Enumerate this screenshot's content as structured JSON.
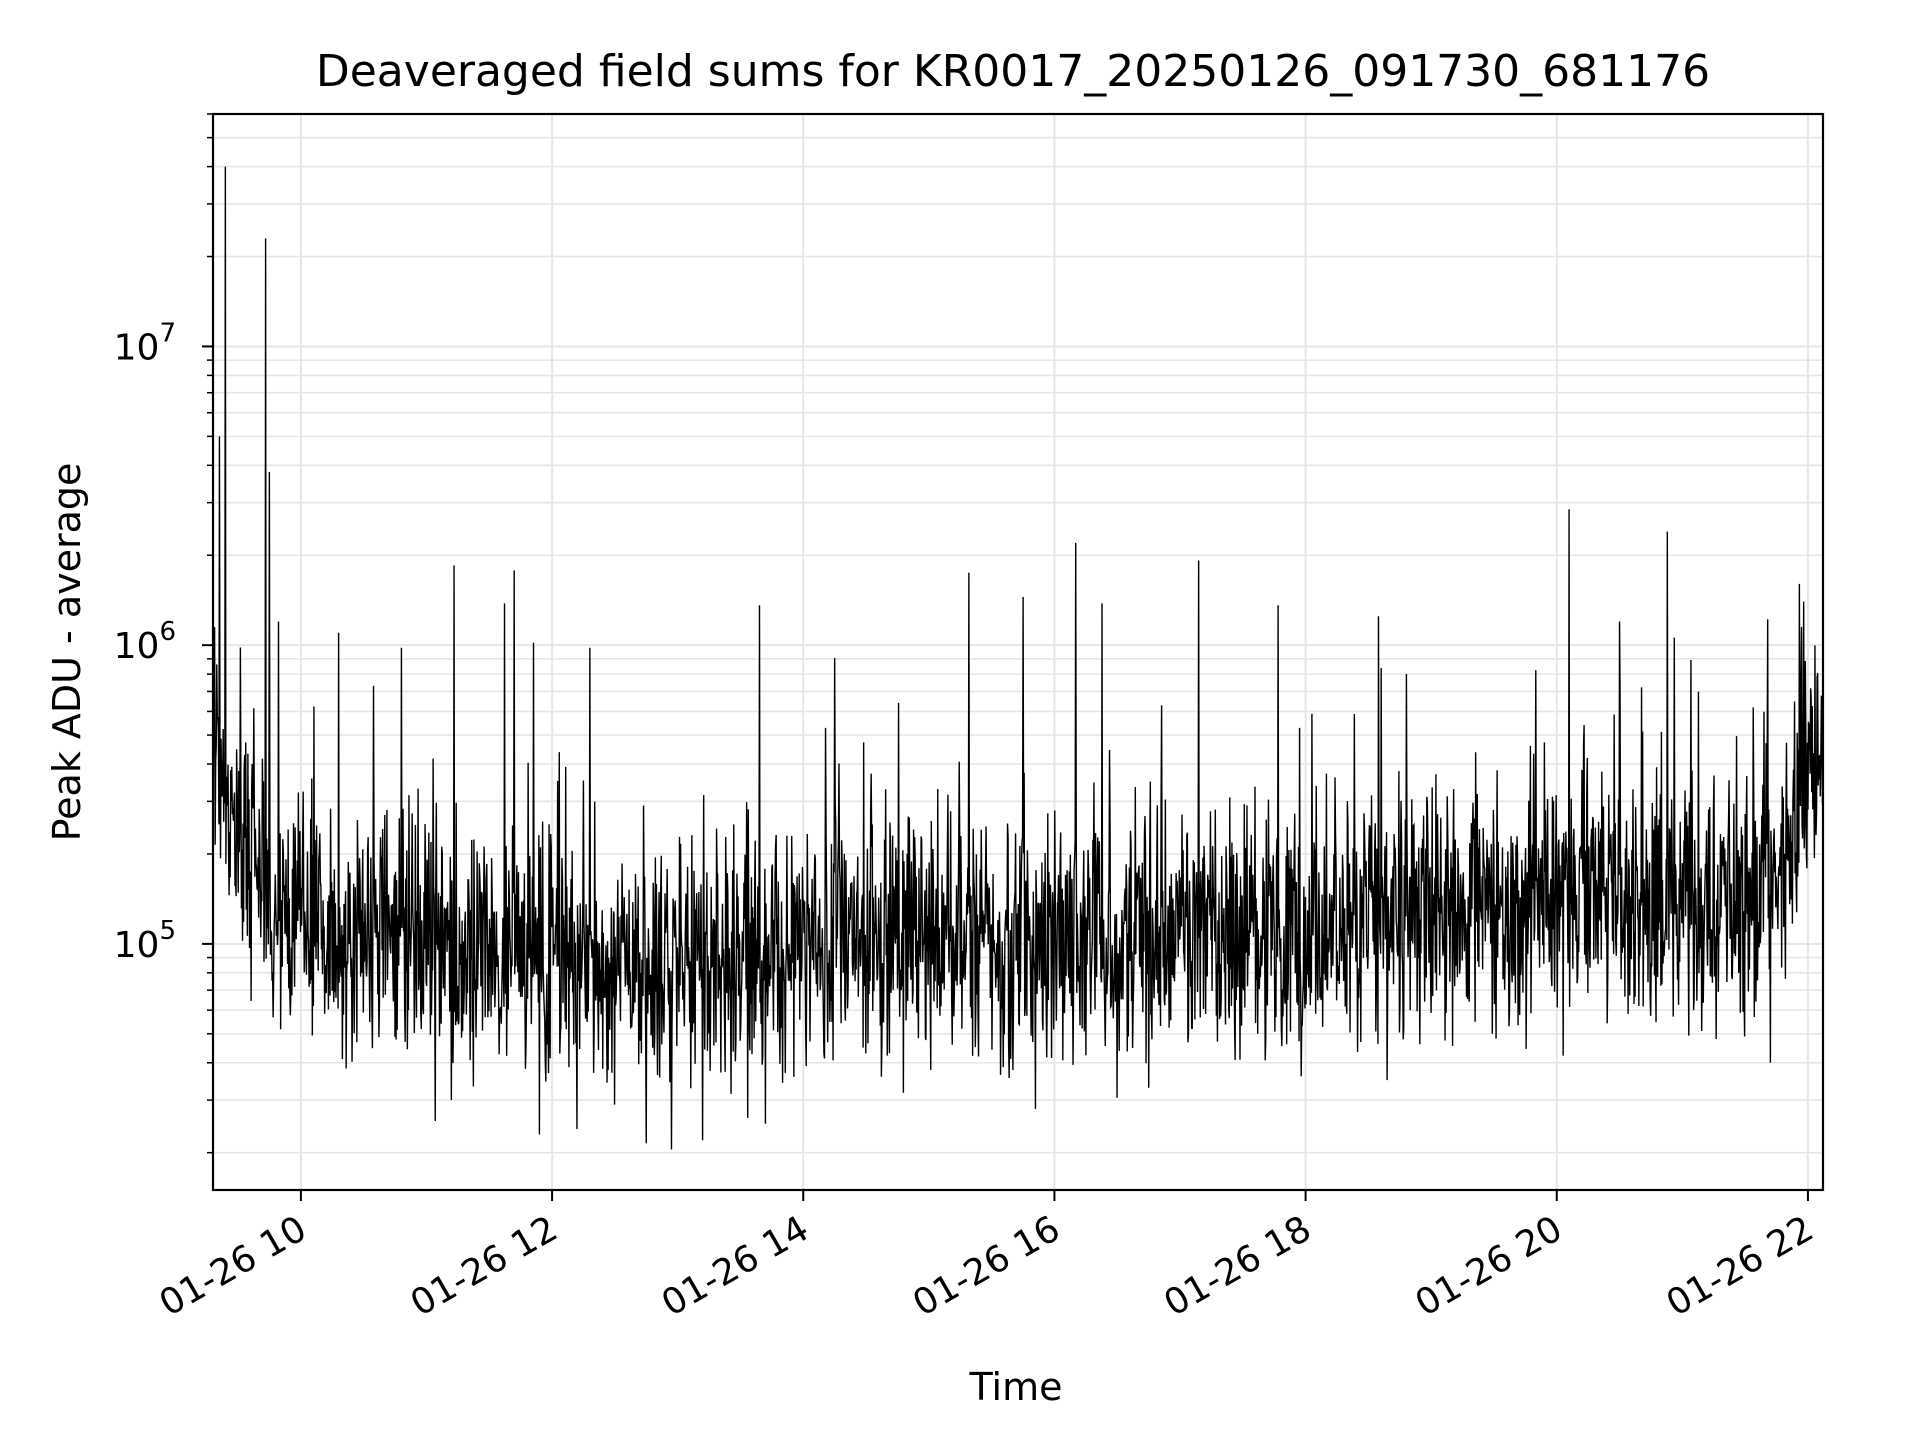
{
  "chart_data": {
    "type": "line",
    "title": "Deaveraged field sums for KR0017_20250126_091730_681176",
    "xlabel": "Time",
    "ylabel": "Peak ADU - average",
    "x_unit": "hours (2025-01-26)",
    "xlim": [
      9.3,
      22.12
    ],
    "ylim": [
      15000,
      60000000
    ],
    "y_scale": "log",
    "grid": true,
    "legend": "none",
    "line_color": "#000000",
    "x_ticks": [
      {
        "value": 10,
        "label": "01-26 10"
      },
      {
        "value": 12,
        "label": "01-26 12"
      },
      {
        "value": 14,
        "label": "01-26 14"
      },
      {
        "value": 16,
        "label": "01-26 16"
      },
      {
        "value": 18,
        "label": "01-26 18"
      },
      {
        "value": 20,
        "label": "01-26 20"
      },
      {
        "value": 22,
        "label": "01-26 22"
      }
    ],
    "y_ticks": [
      {
        "value": 100000,
        "base": "10",
        "exp": "5"
      },
      {
        "value": 1000000,
        "base": "10",
        "exp": "6"
      },
      {
        "value": 10000000,
        "base": "10",
        "exp": "7"
      }
    ],
    "baseline": [
      [
        9.3,
        420000
      ],
      [
        9.45,
        330000
      ],
      [
        9.6,
        190000
      ],
      [
        9.8,
        130000
      ],
      [
        10.0,
        110000
      ],
      [
        10.3,
        100000
      ],
      [
        10.6,
        108000
      ],
      [
        11.0,
        95000
      ],
      [
        11.3,
        85000
      ],
      [
        11.7,
        95000
      ],
      [
        12.0,
        88000
      ],
      [
        12.4,
        85000
      ],
      [
        12.8,
        80000
      ],
      [
        13.2,
        80000
      ],
      [
        13.6,
        88000
      ],
      [
        14.0,
        95000
      ],
      [
        14.4,
        100000
      ],
      [
        14.8,
        105000
      ],
      [
        15.2,
        103000
      ],
      [
        15.6,
        98000
      ],
      [
        16.0,
        95000
      ],
      [
        16.4,
        100000
      ],
      [
        16.8,
        108000
      ],
      [
        17.2,
        112000
      ],
      [
        17.6,
        108000
      ],
      [
        18.0,
        105000
      ],
      [
        18.4,
        115000
      ],
      [
        18.8,
        130000
      ],
      [
        19.2,
        125000
      ],
      [
        19.6,
        135000
      ],
      [
        20.0,
        140000
      ],
      [
        20.4,
        150000
      ],
      [
        20.8,
        140000
      ],
      [
        21.2,
        135000
      ],
      [
        21.5,
        140000
      ],
      [
        21.75,
        200000
      ],
      [
        22.0,
        360000
      ],
      [
        22.12,
        430000
      ]
    ],
    "spikes": [
      [
        9.35,
        5000000
      ],
      [
        9.4,
        40000000
      ],
      [
        9.72,
        23000000
      ],
      [
        9.75,
        3800000
      ],
      [
        9.82,
        1200000
      ],
      [
        10.3,
        1100000
      ],
      [
        10.8,
        980000
      ],
      [
        11.22,
        1850000
      ],
      [
        11.62,
        1380000
      ],
      [
        11.7,
        1780000
      ],
      [
        11.85,
        1020000
      ],
      [
        12.3,
        980000
      ],
      [
        13.65,
        1360000
      ],
      [
        15.32,
        1750000
      ],
      [
        15.75,
        1450000
      ],
      [
        16.17,
        2200000
      ],
      [
        16.38,
        1380000
      ],
      [
        17.15,
        1920000
      ],
      [
        17.78,
        1360000
      ],
      [
        18.58,
        1250000
      ],
      [
        20.1,
        2850000
      ],
      [
        20.5,
        1200000
      ],
      [
        20.88,
        2400000
      ],
      [
        21.68,
        1220000
      ],
      [
        21.95,
        1150000
      ]
    ],
    "dips": [
      [
        11.2,
        30000
      ],
      [
        11.9,
        23000
      ],
      [
        12.2,
        24000
      ],
      [
        12.75,
        21500
      ],
      [
        12.95,
        20500
      ],
      [
        13.2,
        22000
      ],
      [
        13.7,
        25000
      ],
      [
        15.85,
        28000
      ],
      [
        16.5,
        30500
      ],
      [
        16.75,
        33000
      ],
      [
        18.65,
        35000
      ],
      [
        21.7,
        40000
      ]
    ]
  }
}
